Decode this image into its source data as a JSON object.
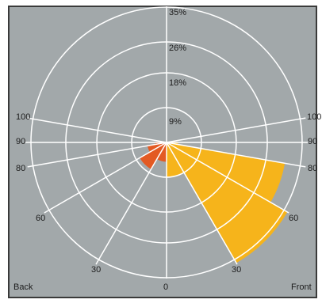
{
  "chart_data": {
    "type": "polar-area",
    "radial_ticks": [
      "9%",
      "18%",
      "26%",
      "35%"
    ],
    "radial_tick_values": [
      9,
      18,
      26,
      35
    ],
    "r_max": 35,
    "angle_labels": {
      "left": [
        "100",
        "90",
        "80",
        "60",
        "30"
      ],
      "right": [
        "100",
        "90",
        "80",
        "60",
        "30"
      ],
      "bottom": "0"
    },
    "angle_values": [
      100,
      90,
      80,
      60,
      30,
      0
    ],
    "side_labels": {
      "left": "Back",
      "right": "Front"
    },
    "series": [
      {
        "side": "Front",
        "color": "#F6B41B",
        "sectors": [
          {
            "from": 0,
            "to": 30,
            "value": 9
          },
          {
            "from": 30,
            "to": 60,
            "value": 36
          },
          {
            "from": 60,
            "to": 80,
            "value": 31
          },
          {
            "from": 80,
            "to": 90,
            "value": 3
          }
        ]
      },
      {
        "side": "Back",
        "color": "#E35A23",
        "sectors": [
          {
            "from": 0,
            "to": 30,
            "value": 5
          },
          {
            "from": 30,
            "to": 60,
            "value": 8
          },
          {
            "from": 60,
            "to": 80,
            "value": 5
          },
          {
            "from": 80,
            "to": 90,
            "value": 3
          }
        ]
      }
    ],
    "grid": true,
    "background_color": "#A2A8AA",
    "grid_color": "#FFFFFF",
    "axis_color": "#FFFFFF",
    "text_color": "#1C1C1C",
    "border_color": "#3A3A3A"
  }
}
